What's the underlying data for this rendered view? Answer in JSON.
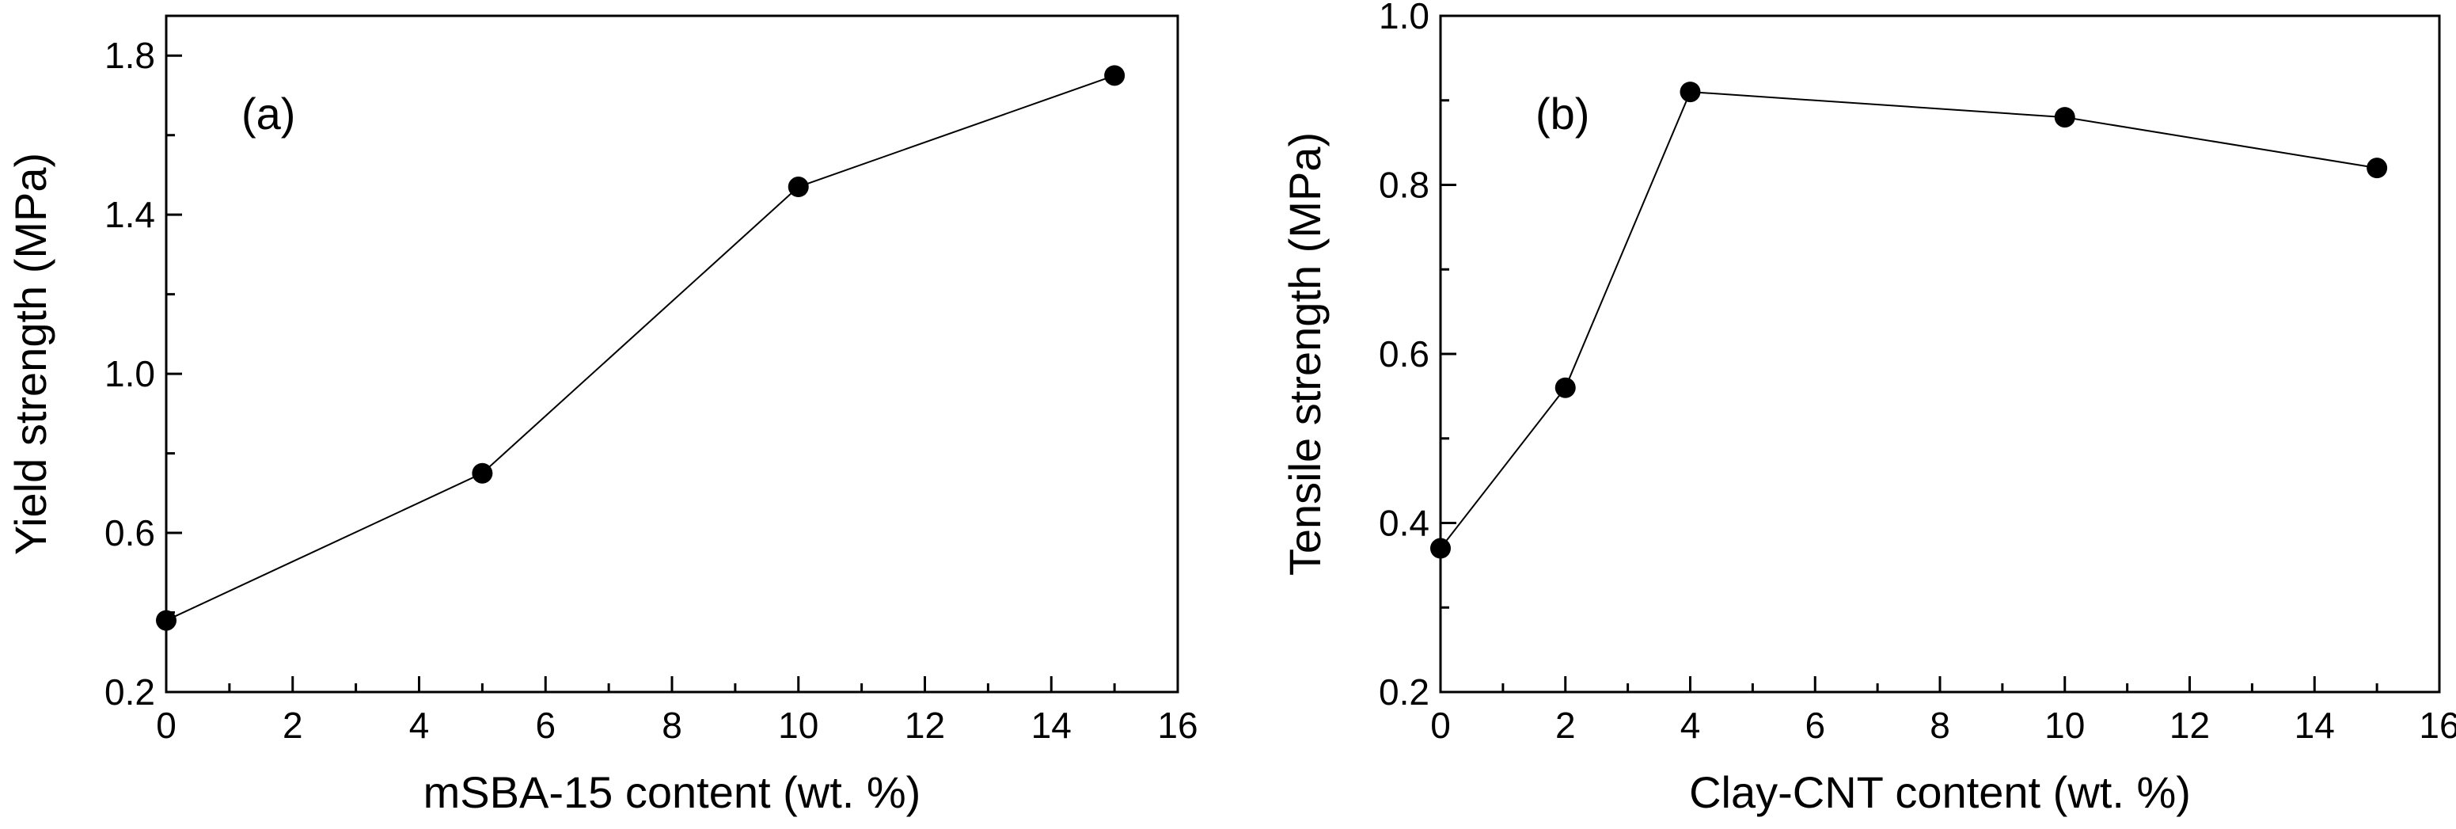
{
  "chart_data": [
    {
      "type": "line",
      "panel": "(a)",
      "xlabel": "mSBA-15 content (wt. %)",
      "ylabel": "Yield strength (MPa)",
      "xlim": [
        0,
        16
      ],
      "ylim": [
        0.2,
        1.9
      ],
      "xticks": [
        0,
        2,
        4,
        6,
        8,
        10,
        12,
        14,
        16
      ],
      "xtick_labels": [
        "0",
        "2",
        "4",
        "6",
        "8",
        "10",
        "12",
        "14",
        "16"
      ],
      "yticks": [
        0.2,
        0.6,
        1.0,
        1.4,
        1.8
      ],
      "ytick_labels": [
        "0.2",
        "0.6",
        "1.0",
        "1.4",
        "1.8"
      ],
      "x": [
        0,
        5,
        10,
        15
      ],
      "y": [
        0.38,
        0.75,
        1.47,
        1.75
      ],
      "marker": "circle",
      "line_color": "#000000"
    },
    {
      "type": "line",
      "panel": "(b)",
      "xlabel": "Clay-CNT content (wt. %)",
      "ylabel": "Tensile strength (MPa)",
      "xlim": [
        0,
        16
      ],
      "ylim": [
        0.2,
        1.0
      ],
      "xticks": [
        0,
        2,
        4,
        6,
        8,
        10,
        12,
        14,
        16
      ],
      "xtick_labels": [
        "0",
        "2",
        "4",
        "6",
        "8",
        "10",
        "12",
        "14",
        "16"
      ],
      "yticks": [
        0.2,
        0.4,
        0.6,
        0.8,
        1.0
      ],
      "ytick_labels": [
        "0.2",
        "0.4",
        "0.6",
        "0.8",
        "1.0"
      ],
      "x": [
        0,
        2,
        4,
        10,
        15
      ],
      "y": [
        0.37,
        0.56,
        0.91,
        0.88,
        0.82
      ],
      "marker": "circle",
      "line_color": "#000000"
    }
  ]
}
